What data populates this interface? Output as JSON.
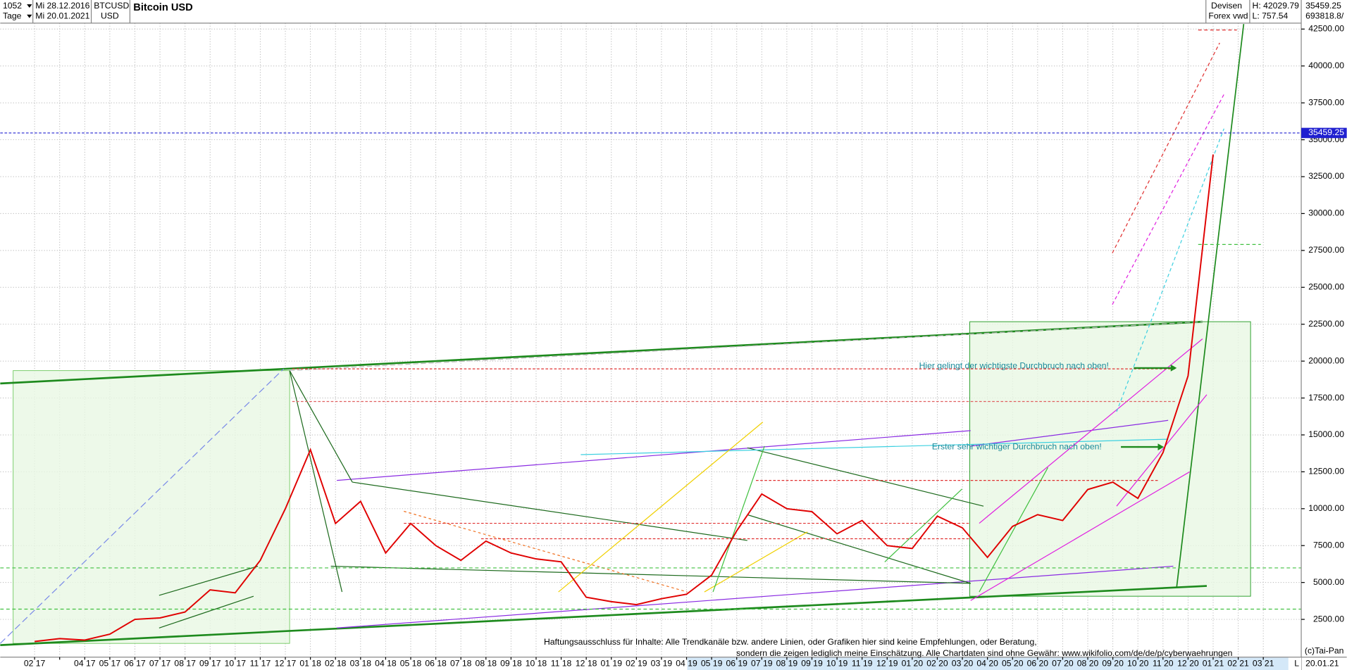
{
  "header": {
    "count": "1052",
    "from": "Mi 28.12.2016",
    "symbol": "BTCUSD",
    "currency": "USD",
    "period": "Tage",
    "to": "Mi 20.01.2021",
    "name": "Bitcoin USD",
    "market": "Devisen",
    "source": "Forex vwd",
    "high": "H: 42029.79",
    "low": "L: 757.54",
    "volume": "693818.8/"
  },
  "chart_data": {
    "type": "line",
    "color": "#e00000",
    "categories": [
      "02 17",
      null,
      "04 17",
      "05 17",
      "06 17",
      "07 17",
      "08 17",
      "09 17",
      "10 17",
      "11 17",
      "12 17",
      "01 18",
      "02 18",
      "03 18",
      "04 18",
      "05 18",
      "06 18",
      "07 18",
      "08 18",
      "09 18",
      "10 18",
      "11 18",
      "12 18",
      "01 19",
      "02 19",
      "03 19",
      "04 19",
      "05 19",
      "06 19",
      "07 19",
      "08 19",
      "09 19",
      "10 19",
      "11 19",
      "12 19",
      "01 20",
      "02 20",
      "03 20",
      "04 20",
      "05 20",
      "06 20",
      "07 20",
      "08 20",
      "09 20",
      "10 20",
      "11 20",
      "12 20",
      "01 21",
      "02 21",
      "03 21"
    ],
    "values": [
      1000,
      1200,
      1100,
      1500,
      2500,
      2600,
      3000,
      4500,
      4300,
      6500,
      10000,
      14000,
      9000,
      10500,
      7000,
      9000,
      7500,
      6500,
      7800,
      7000,
      6600,
      6400,
      4000,
      3700,
      3500,
      3900,
      4200,
      5500,
      8500,
      11000,
      10000,
      9800,
      8300,
      9200,
      7500,
      7300,
      9500,
      8700,
      6700,
      8800,
      9600,
      9200,
      11300,
      11800,
      10700,
      13800,
      19000,
      34000,
      null,
      null
    ],
    "last": 35459.25,
    "ylim": [
      0,
      42900
    ],
    "yticks": [
      {
        "value": 2500,
        "label": "2500.00"
      },
      {
        "value": 5000,
        "label": "5000.00"
      },
      {
        "value": 7500,
        "label": "7500.00"
      },
      {
        "value": 10000,
        "label": "10000.00"
      },
      {
        "value": 12500,
        "label": "12500.00"
      },
      {
        "value": 15000,
        "label": "15000.00"
      },
      {
        "value": 17500,
        "label": "17500.00"
      },
      {
        "value": 20000,
        "label": "20000.00"
      },
      {
        "value": 22500,
        "label": "22500.00"
      },
      {
        "value": 25000,
        "label": "25000.00"
      },
      {
        "value": 27500,
        "label": "27500.00"
      },
      {
        "value": 30000,
        "label": "30000.00"
      },
      {
        "value": 32500,
        "label": "32500.00"
      },
      {
        "value": 35000,
        "label": "35000.00"
      },
      {
        "value": 37500,
        "label": "37500.00"
      },
      {
        "value": 40000,
        "label": "40000.00"
      },
      {
        "value": 42500,
        "label": "42500.00"
      }
    ],
    "grid": true,
    "annotations": [
      "Hier gelingt der wichtigste Durchbruch nach oben!",
      "Erster sehr wichtiger Durchbruch nach oben!"
    ],
    "disclaimer": [
      "Haftungsausschluss für Inhalte: Alle Trendkanäle bzw. andere Linien, oder Grafiken hier sind keine Empfehlungen, oder Beratung,",
      "sondern die zeigen lediglich meine  Einschätzung. Alle Chartdaten sind ohne Gewähr:  www.wikifolio.com/de/de/p/cyberwaehrungen"
    ],
    "copyright": "(c)Tai-Pan",
    "date_label": "20.01.21",
    "scale_mode": "L"
  }
}
